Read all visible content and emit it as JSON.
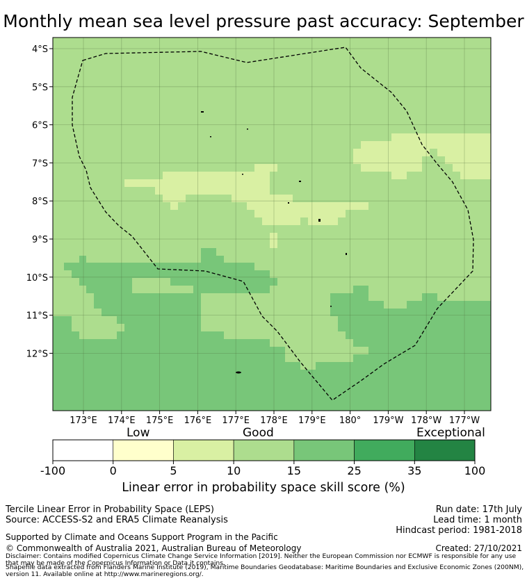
{
  "title": "Monthly mean sea level pressure past accuracy: September",
  "map": {
    "lat_labels": [
      "4°S",
      "5°S",
      "6°S",
      "7°S",
      "8°S",
      "9°S",
      "10°S",
      "11°S",
      "12°S"
    ],
    "lon_labels": [
      "173°E",
      "174°E",
      "175°E",
      "176°E",
      "177°E",
      "178°E",
      "179°E",
      "180°",
      "179°W",
      "178°W",
      "177°W"
    ],
    "colors": {
      "low": "#ffffcc",
      "good_low": "#d9f0a3",
      "good_high": "#addd8e",
      "exceptional_low": "#78c679",
      "exceptional_mid": "#41ab5d",
      "exceptional_high": "#238443"
    }
  },
  "colorbar": {
    "categories": [
      "Low",
      "Good",
      "Exceptional"
    ],
    "ticks": [
      "-100",
      "0",
      "5",
      "10",
      "15",
      "25",
      "35",
      "100"
    ],
    "colors": [
      "#ffffff",
      "#ffffcc",
      "#d9f0a3",
      "#addd8e",
      "#78c679",
      "#41ab5d",
      "#238443"
    ],
    "label": "Linear error in probability space skill score (%)"
  },
  "footer": {
    "left1": "Tercile Linear Error in Probability Space (LEPS)",
    "left2": "Source: ACCESS-S2 and ERA5 Climate Reanalysis",
    "right1": "Run date: 17th July",
    "right2": "Lead time: 1 month",
    "right3": "Hindcast period: 1981-2018",
    "support": "Supported by Climate and Oceans Support Program in the Pacific",
    "copyright": "© Commonwealth of Australia 2021, Australian Bureau of Meteorology",
    "created": "Created: 27/10/2021",
    "disclaimer1": "Disclaimer: Contains modified Copernicus Climate Change Service Information [2019]. Neither the European Commission nor ECMWF is responsible for any use",
    "disclaimer2": "that may be made of the Copernicus Information or Data it contains.",
    "shapefile1": "Shapefile data extracted from Flanders Marine Institute (2019), Maritime Boundaries Geodatabase: Maritime Boundaries and Exclusive Economic Zones (200NM),",
    "shapefile2": "version 11. Available online at http://www.marineregions.org/."
  }
}
